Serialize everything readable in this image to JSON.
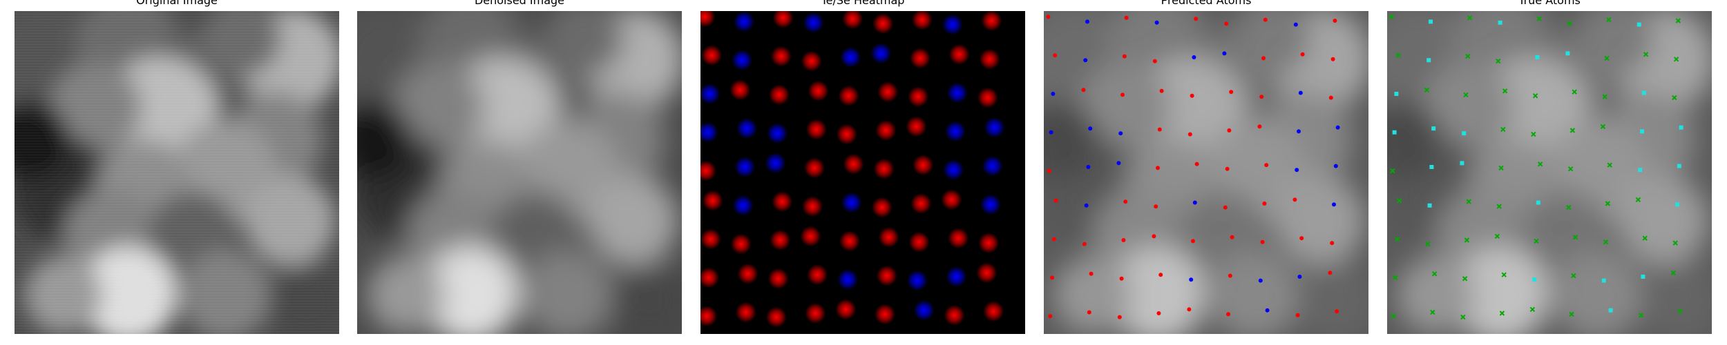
{
  "panels": [
    {
      "key": "original",
      "title": "Original Image",
      "kind": "gray",
      "style": "raw"
    },
    {
      "key": "denoised",
      "title": "Denoised Image",
      "kind": "gray",
      "style": "smooth"
    },
    {
      "key": "heatmap",
      "title": "Te/Se Heatmap",
      "kind": "heatmap"
    },
    {
      "key": "predicted",
      "title": "Predicted Atoms",
      "kind": "predicted"
    },
    {
      "key": "true",
      "title": "True Atoms",
      "kind": "true"
    }
  ],
  "colors": {
    "heat_te": "#ff0000",
    "heat_se": "#0000ff",
    "pred_te": "#ff0000",
    "pred_se": "#0000ff",
    "true_te": "#00aa00",
    "true_se": "#20e0e0"
  },
  "atoms_grid": [
    "TSTSTTTST",
    "TSTTSSTTT",
    "STTTTTTST",
    "SSSTTTTSS",
    "TSSTTTTSS",
    "TSTTSTTTS",
    "TTTTTTTTT",
    "TTTTSTSST",
    "TTTTTTSTT"
  ],
  "markers": {
    "predicted": "dot",
    "true_te": "x",
    "true_se": "square"
  }
}
